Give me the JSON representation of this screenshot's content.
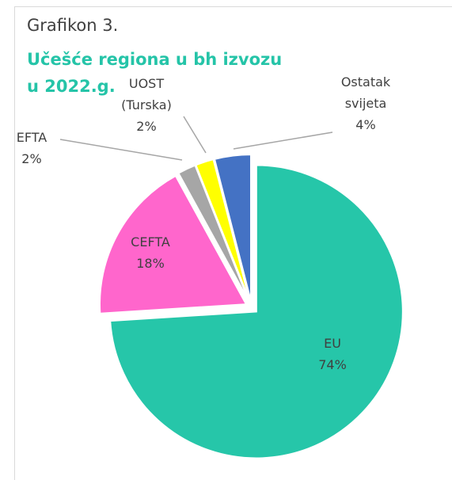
{
  "chart_data": {
    "type": "pie",
    "title": "Grafikon 3.",
    "subtitle": "Učešće regiona u bh izvozu u 2022.g.",
    "categories": [
      "EU",
      "CEFTA",
      "EFTA",
      "UOST (Turska)",
      "Ostatak svijeta"
    ],
    "values": [
      74,
      18,
      2,
      2,
      4
    ],
    "value_labels": [
      "74%",
      "18%",
      "2%",
      "2%",
      "4%"
    ],
    "colors": [
      "#26c6a9",
      "#ff66cc",
      "#a6a6a6",
      "#ffff00",
      "#4472c4"
    ]
  }
}
